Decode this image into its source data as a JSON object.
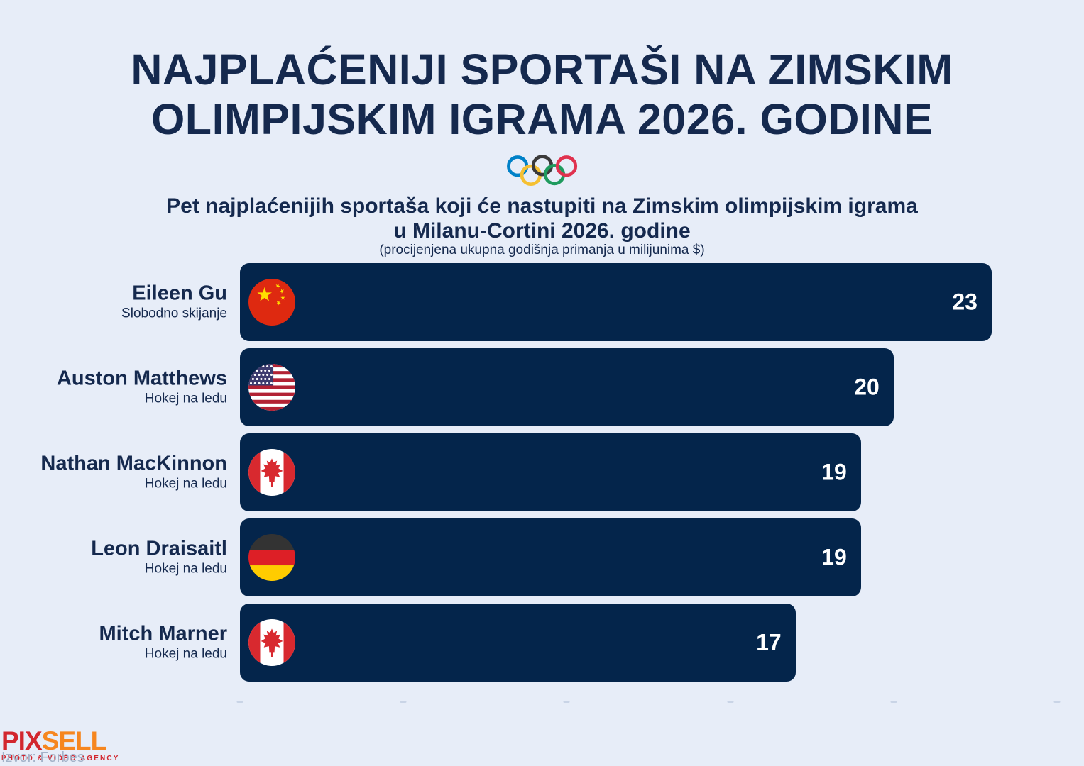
{
  "header": {
    "title_line1": "NAJPLAĆENIJI SPORTAŠI NA ZIMSKIM",
    "title_line2": "OLIMPIJSKIM IGRAMA 2026. GODINE",
    "subtitle_line1": "Pet najplaćenijih sportaša koji će nastupiti na Zimskim olimpijskim igrama",
    "subtitle_line2": "u Milanu-Cortini 2026. godine",
    "note": "(procijenjena ukupna godišnja primanja u milijunima $)"
  },
  "chart_data": {
    "type": "bar",
    "orientation": "horizontal",
    "title": "Najplaćeniji sportaši na Zimskim olimpijskim igrama 2026. godine",
    "unit": "procijenjena ukupna godišnja primanja u milijunima $",
    "categories": [
      "Eileen Gu",
      "Auston Matthews",
      "Nathan MacKinnon",
      "Leon Draisaitl",
      "Mitch Marner"
    ],
    "sports": [
      "Slobodno skijanje",
      "Hokej na ledu",
      "Hokej na ledu",
      "Hokej na ledu",
      "Hokej na ledu"
    ],
    "countries": [
      "china",
      "usa",
      "canada",
      "germany",
      "canada"
    ],
    "values": [
      23,
      20,
      19,
      19,
      17
    ],
    "xlim": [
      0,
      25
    ],
    "x_ticks": [
      0,
      5,
      10,
      15,
      20,
      25
    ],
    "value_labels_visible": true,
    "grid": false,
    "legend": false
  },
  "footer": {
    "logo_part1": "PIX",
    "logo_part2": "SELL",
    "logo_tagline": "PHOTO & VIDEO AGENCY",
    "source": "Izvor: Forbes"
  },
  "colors": {
    "background": "#e7edf8",
    "bar": "#04254b",
    "text_navy": "#15294e",
    "value_text": "#ffffff",
    "tick": "#c9d4e6",
    "source_text": "#a4b3c9",
    "logo_red": "#d2262e",
    "logo_orange": "#f6861f",
    "rings": {
      "blue": "#0081c8",
      "yellow": "#f5c032",
      "black": "#3a3a3a",
      "green": "#1f9b5e",
      "red": "#e0324f"
    },
    "flags": {
      "china": {
        "field": "#de2910",
        "star": "#ffde00"
      },
      "usa": {
        "red": "#b22234",
        "white": "#ffffff",
        "blue": "#3c3b6e"
      },
      "canada": {
        "red": "#d8292f",
        "white": "#ffffff"
      },
      "germany": {
        "black": "#333333",
        "red": "#dd1f26",
        "gold": "#ffcc00"
      }
    }
  }
}
